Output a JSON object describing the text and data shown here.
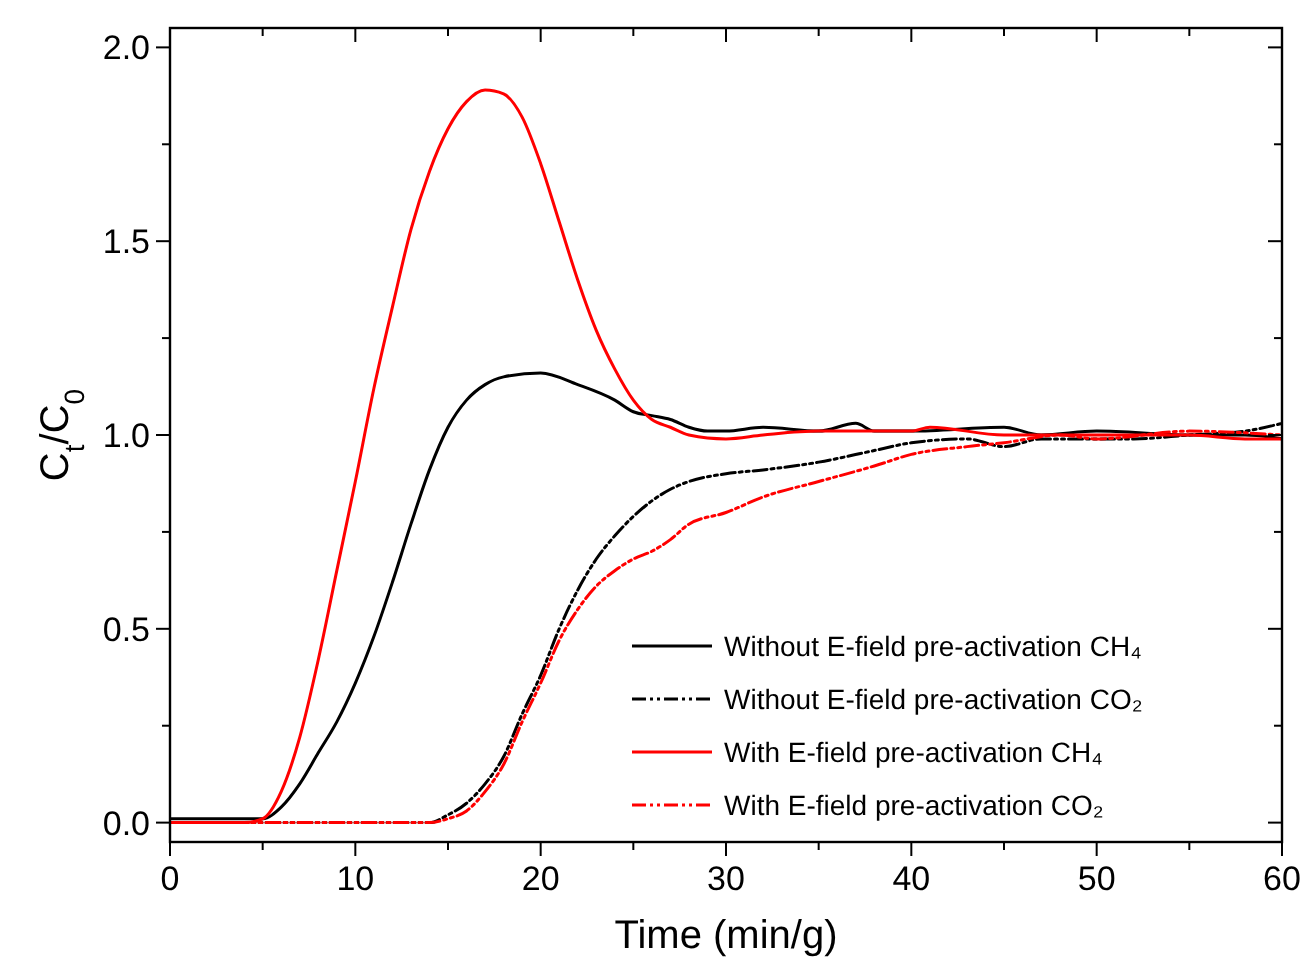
{
  "chart_data": {
    "type": "line",
    "xlabel": "Time (min/g)",
    "ylabel": "C$_{t}$/C$_{0}$",
    "xlim": [
      0,
      60
    ],
    "ylim": [
      -0.05,
      2.05
    ],
    "xticks": [
      0,
      {
        "value": 5,
        "label": null
      },
      10,
      {
        "value": 15,
        "label": null
      },
      20,
      {
        "value": 25,
        "label": null
      },
      30,
      {
        "value": 35,
        "label": null
      },
      40,
      {
        "value": 45,
        "label": null
      },
      50,
      {
        "value": 55,
        "label": null
      },
      60
    ],
    "yticks": [
      "0.0",
      {
        "value": 0.25,
        "label": null
      },
      {
        "value": 0.5,
        "label": "0.5"
      },
      {
        "value": 0.75,
        "label": null
      },
      {
        "value": 1,
        "label": "1.0"
      },
      {
        "value": 1.25,
        "label": null
      },
      {
        "value": 1.5,
        "label": "1.5"
      },
      {
        "value": 1.75,
        "label": null
      },
      {
        "value": 2,
        "label": "2.0"
      }
    ],
    "grid": false,
    "legend": "bottom right",
    "marker": "none",
    "series": [
      {
        "name": "Without E-field pre-activation CH₄",
        "color": "#000000",
        "line_style": "solid",
        "x": [
          0,
          1,
          3,
          5,
          6,
          7,
          8,
          9,
          10,
          11,
          12,
          13,
          14,
          15,
          16,
          17,
          18,
          20,
          22,
          24,
          25,
          26,
          27,
          28,
          29,
          30,
          32,
          35,
          37,
          38,
          40,
          45,
          47,
          50,
          55,
          58,
          60
        ],
        "values": [
          0.01,
          0.01,
          0.01,
          0.01,
          0.04,
          0.1,
          0.18,
          0.26,
          0.36,
          0.48,
          0.62,
          0.77,
          0.91,
          1.02,
          1.09,
          1.13,
          1.15,
          1.16,
          1.13,
          1.09,
          1.06,
          1.05,
          1.04,
          1.02,
          1.01,
          1.01,
          1.02,
          1.01,
          1.03,
          1.01,
          1.01,
          1.02,
          1.0,
          1.01,
          1.0,
          1.0,
          0.99
        ]
      },
      {
        "name": "Without E-field pre-activation CO₂",
        "color": "#000000",
        "line_style": "dashed",
        "x": [
          0,
          5,
          10,
          14,
          15,
          16,
          17,
          18,
          19,
          20,
          21,
          22,
          23,
          24,
          25,
          26,
          27,
          28,
          30,
          32,
          35,
          38,
          40,
          43,
          45,
          47,
          50,
          52,
          55,
          58,
          60
        ],
        "values": [
          0,
          0,
          0,
          0,
          0.02,
          0.05,
          0.1,
          0.17,
          0.28,
          0.38,
          0.5,
          0.6,
          0.68,
          0.74,
          0.79,
          0.83,
          0.86,
          0.88,
          0.9,
          0.91,
          0.93,
          0.96,
          0.98,
          0.99,
          0.97,
          0.99,
          0.99,
          0.99,
          1.0,
          1.01,
          1.03
        ]
      },
      {
        "name": "With E-field pre-activation CH₄",
        "color": "#ff0000",
        "line_style": "solid",
        "x": [
          0,
          2,
          4,
          5,
          6,
          7,
          8,
          9,
          10,
          11,
          12,
          13,
          14,
          15,
          16,
          17,
          18,
          19,
          20,
          21,
          22,
          23,
          24,
          25,
          26,
          27,
          28,
          30,
          32,
          35,
          40,
          41,
          45,
          50,
          55,
          58,
          60
        ],
        "values": [
          0,
          0,
          0,
          0.01,
          0.08,
          0.22,
          0.42,
          0.65,
          0.88,
          1.12,
          1.33,
          1.53,
          1.68,
          1.79,
          1.86,
          1.89,
          1.88,
          1.82,
          1.7,
          1.55,
          1.4,
          1.27,
          1.17,
          1.09,
          1.04,
          1.02,
          1.0,
          0.99,
          1.0,
          1.01,
          1.01,
          1.02,
          1.0,
          1.0,
          1.0,
          0.99,
          0.99
        ]
      },
      {
        "name": "With E-field pre-activation CO₂",
        "color": "#ff0000",
        "line_style": "dashed",
        "x": [
          0,
          5,
          10,
          14,
          15,
          16,
          17,
          18,
          19,
          20,
          21,
          22,
          23,
          24,
          25,
          26,
          27,
          28,
          30,
          32,
          35,
          38,
          40,
          43,
          45,
          48,
          50,
          55,
          60
        ],
        "values": [
          0,
          0,
          0,
          0,
          0.01,
          0.03,
          0.08,
          0.15,
          0.26,
          0.36,
          0.47,
          0.55,
          0.61,
          0.65,
          0.68,
          0.7,
          0.73,
          0.77,
          0.8,
          0.84,
          0.88,
          0.92,
          0.95,
          0.97,
          0.98,
          1.0,
          0.99,
          1.01,
          1.0
        ]
      }
    ]
  }
}
